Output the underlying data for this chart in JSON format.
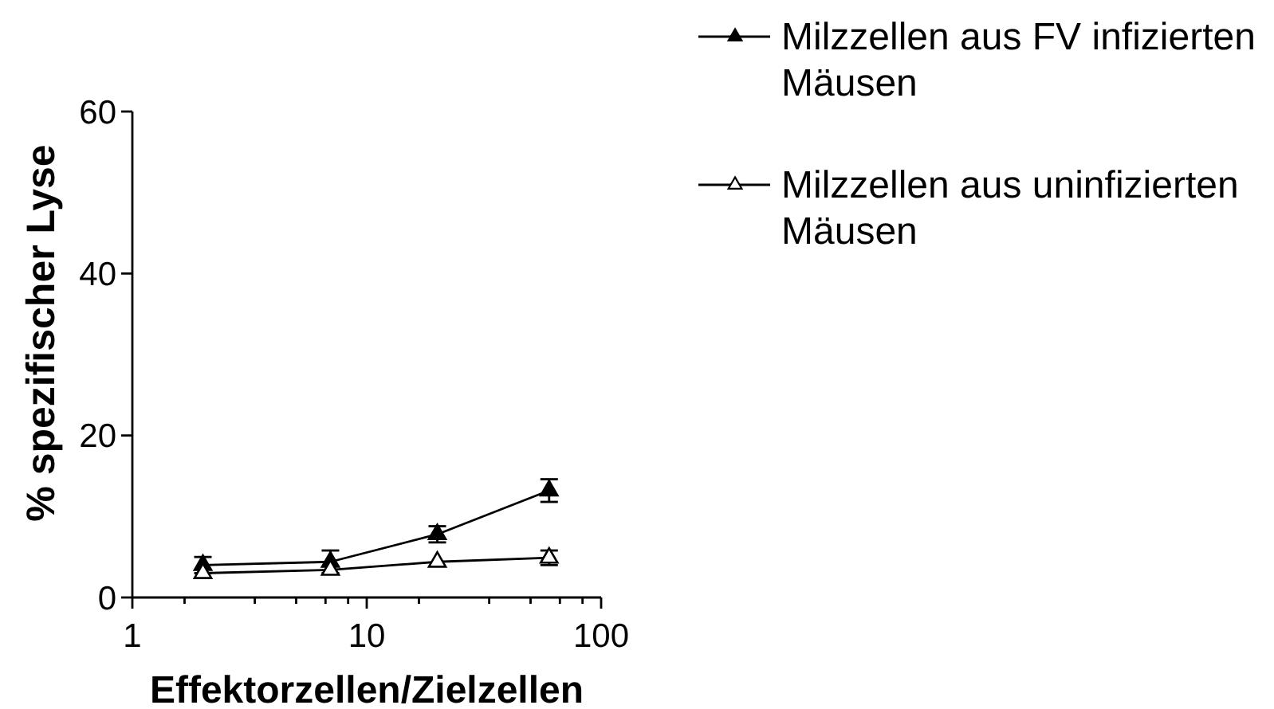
{
  "chart_data": {
    "type": "line",
    "xlabel": "Effektorzellen/Zielzellen",
    "ylabel": "% spezifischer Lyse",
    "x": [
      2,
      7,
      20,
      60
    ],
    "log": "x",
    "xlim": [
      1,
      100
    ],
    "xticks": [
      1,
      {
        "value": 1.67,
        "label": null
      },
      {
        "value": 3.33,
        "label": null
      },
      {
        "value": 5,
        "label": null
      },
      {
        "value": 6.67,
        "label": null
      },
      {
        "value": 8.33,
        "label": null
      },
      10,
      {
        "value": 16.7,
        "label": null
      },
      {
        "value": 33.3,
        "label": null
      },
      {
        "value": 50,
        "label": null
      },
      {
        "value": 66.7,
        "label": null
      },
      {
        "value": 83.3,
        "label": null
      },
      100
    ],
    "ylim": [
      0,
      60
    ],
    "yticks": [
      0,
      20,
      40,
      60
    ],
    "legend": "top right",
    "marker": "triangle",
    "line_style": "solid",
    "series": [
      {
        "name": "Milzzellen aus FV infizierten Mäusen",
        "color": "#000000",
        "values": [
          4,
          4.4,
          7.8,
          13.2
        ],
        "errors": [
          1,
          1.4,
          1,
          1.4
        ]
      },
      {
        "name": "Milzzellen aus uninfizierten Mäusen",
        "color": "#000000",
        "values": [
          3,
          3.4,
          4.4,
          4.9
        ],
        "errors": [
          null,
          null,
          null,
          0.9
        ]
      }
    ]
  }
}
